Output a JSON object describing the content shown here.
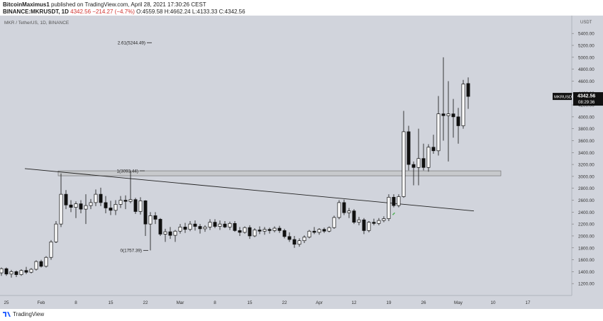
{
  "header": {
    "author": "BitcoinMaximus1",
    "published_text": "published on TradingView.com, April 28, 2021 17:30:26 CEST",
    "pair": "BINANCE:MKRUSDT, 1D",
    "price": "4342.56",
    "change": "−214.27 (−4.7%)",
    "ohlc": "O:4559.58 H:4662.24 L:4133.33 C:4342.56"
  },
  "footer": {
    "brand": "TradingView"
  },
  "chart_data": {
    "type": "candlestick",
    "title": "MKR / TetherUS, 1D, BINANCE",
    "currency": "USDT",
    "ylim": [
      1000,
      5700
    ],
    "yticks": [
      1200,
      1400,
      1600,
      1800,
      2000,
      2200,
      2400,
      2600,
      2800,
      3000,
      3200,
      3400,
      3600,
      3800,
      4000,
      4200,
      4400,
      4600,
      4800,
      5000,
      5200,
      5400
    ],
    "x_tick_labels": [
      "25",
      "Feb",
      "8",
      "15",
      "22",
      "Mar",
      "8",
      "15",
      "22",
      "Apr",
      "12",
      "19",
      "26",
      "May",
      "10",
      "17"
    ],
    "price_label": {
      "symbol": "MKRUSDT",
      "price": "4342.56",
      "countdown": "08:29:36"
    },
    "annotations": [
      {
        "label": "2.61(5244.49)",
        "value": 5244.49
      },
      {
        "label": "1(3093.44)",
        "value": 3093.44
      },
      {
        "label": "0(1757.39)",
        "value": 1757.39
      }
    ],
    "resistance_zone": [
      3010,
      3093.44
    ],
    "trendline": {
      "from": [
        "2021-01-29",
        3130
      ],
      "to": [
        "2021-04-26",
        2420
      ]
    },
    "colors": {
      "up": "#ffffff",
      "down": "#111111",
      "background": "#d1d4dc",
      "zone": "#bfbfbf",
      "marker": "#4caf50"
    },
    "candles": [
      [
        "2021-01-24",
        1380,
        1470,
        1330,
        1450
      ],
      [
        "2021-01-25",
        1450,
        1470,
        1330,
        1360
      ],
      [
        "2021-01-26",
        1360,
        1430,
        1300,
        1400
      ],
      [
        "2021-01-27",
        1400,
        1420,
        1310,
        1350
      ],
      [
        "2021-01-28",
        1350,
        1440,
        1330,
        1420
      ],
      [
        "2021-01-29",
        1420,
        1480,
        1360,
        1390
      ],
      [
        "2021-01-30",
        1390,
        1460,
        1370,
        1440
      ],
      [
        "2021-01-31",
        1440,
        1590,
        1420,
        1570
      ],
      [
        "2021-02-01",
        1570,
        1600,
        1470,
        1490
      ],
      [
        "2021-02-02",
        1490,
        1660,
        1470,
        1640
      ],
      [
        "2021-02-03",
        1640,
        1930,
        1600,
        1900
      ],
      [
        "2021-02-04",
        1900,
        2250,
        1880,
        2200
      ],
      [
        "2021-02-05",
        2200,
        3050,
        2150,
        2700
      ],
      [
        "2021-02-06",
        2700,
        2770,
        2450,
        2520
      ],
      [
        "2021-02-07",
        2520,
        2600,
        2400,
        2480
      ],
      [
        "2021-02-08",
        2480,
        2580,
        2300,
        2540
      ],
      [
        "2021-02-09",
        2540,
        2600,
        2380,
        2450
      ],
      [
        "2021-02-10",
        2450,
        2700,
        2200,
        2510
      ],
      [
        "2021-02-11",
        2510,
        2620,
        2450,
        2560
      ],
      [
        "2021-02-12",
        2560,
        2780,
        2500,
        2700
      ],
      [
        "2021-02-13",
        2700,
        2810,
        2500,
        2560
      ],
      [
        "2021-02-14",
        2560,
        2670,
        2380,
        2470
      ],
      [
        "2021-02-15",
        2470,
        2590,
        2350,
        2430
      ],
      [
        "2021-02-16",
        2430,
        2600,
        2350,
        2530
      ],
      [
        "2021-02-17",
        2530,
        2670,
        2470,
        2600
      ],
      [
        "2021-02-18",
        2600,
        2680,
        2450,
        2580
      ],
      [
        "2021-02-19",
        2580,
        3090,
        2550,
        2610
      ],
      [
        "2021-02-20",
        2610,
        2640,
        2370,
        2410
      ],
      [
        "2021-02-21",
        2410,
        2650,
        2360,
        2590
      ],
      [
        "2021-02-22",
        2590,
        2600,
        2000,
        2200
      ],
      [
        "2021-02-23",
        2200,
        2400,
        1757,
        2340
      ],
      [
        "2021-02-24",
        2340,
        2400,
        2200,
        2280
      ],
      [
        "2021-02-25",
        2280,
        2300,
        2000,
        2030
      ],
      [
        "2021-02-26",
        2030,
        2120,
        1900,
        2070
      ],
      [
        "2021-02-27",
        2070,
        2150,
        1950,
        2010
      ],
      [
        "2021-02-28",
        2010,
        2100,
        1900,
        2080
      ],
      [
        "2021-03-01",
        2080,
        2200,
        2040,
        2150
      ],
      [
        "2021-03-02",
        2150,
        2220,
        2050,
        2110
      ],
      [
        "2021-03-03",
        2110,
        2250,
        2080,
        2200
      ],
      [
        "2021-03-04",
        2200,
        2260,
        2090,
        2160
      ],
      [
        "2021-03-05",
        2160,
        2200,
        2040,
        2120
      ],
      [
        "2021-03-06",
        2120,
        2180,
        2070,
        2150
      ],
      [
        "2021-03-07",
        2150,
        2280,
        2100,
        2230
      ],
      [
        "2021-03-08",
        2230,
        2280,
        2130,
        2160
      ],
      [
        "2021-03-09",
        2160,
        2260,
        2100,
        2200
      ],
      [
        "2021-03-10",
        2200,
        2250,
        2130,
        2150
      ],
      [
        "2021-03-11",
        2150,
        2240,
        2100,
        2210
      ],
      [
        "2021-03-12",
        2210,
        2250,
        2070,
        2090
      ],
      [
        "2021-03-13",
        2090,
        2150,
        2000,
        2060
      ],
      [
        "2021-03-14",
        2060,
        2160,
        2040,
        2140
      ],
      [
        "2021-03-15",
        2140,
        2180,
        1950,
        2000
      ],
      [
        "2021-03-16",
        2000,
        2130,
        1980,
        2100
      ],
      [
        "2021-03-17",
        2100,
        2160,
        2030,
        2080
      ],
      [
        "2021-03-18",
        2080,
        2150,
        2020,
        2110
      ],
      [
        "2021-03-19",
        2110,
        2140,
        2040,
        2090
      ],
      [
        "2021-03-20",
        2090,
        2160,
        2060,
        2130
      ],
      [
        "2021-03-21",
        2130,
        2170,
        2050,
        2090
      ],
      [
        "2021-03-22",
        2090,
        2120,
        1960,
        1990
      ],
      [
        "2021-03-23",
        1990,
        2060,
        1900,
        1940
      ],
      [
        "2021-03-24",
        1940,
        2000,
        1800,
        1860
      ],
      [
        "2021-03-25",
        1860,
        1960,
        1820,
        1920
      ],
      [
        "2021-03-26",
        1920,
        2010,
        1880,
        1980
      ],
      [
        "2021-03-27",
        1980,
        2100,
        1960,
        2080
      ],
      [
        "2021-03-28",
        2080,
        2150,
        2030,
        2060
      ],
      [
        "2021-03-29",
        2060,
        2130,
        2020,
        2110
      ],
      [
        "2021-03-30",
        2110,
        2140,
        2050,
        2080
      ],
      [
        "2021-03-31",
        2080,
        2160,
        2060,
        2140
      ],
      [
        "2021-04-01",
        2140,
        2340,
        2120,
        2310
      ],
      [
        "2021-04-02",
        2310,
        2600,
        2280,
        2560
      ],
      [
        "2021-04-03",
        2560,
        2610,
        2350,
        2390
      ],
      [
        "2021-04-04",
        2390,
        2470,
        2300,
        2420
      ],
      [
        "2021-04-05",
        2420,
        2450,
        2200,
        2230
      ],
      [
        "2021-04-06",
        2230,
        2320,
        2180,
        2270
      ],
      [
        "2021-04-07",
        2270,
        2300,
        2030,
        2090
      ],
      [
        "2021-04-08",
        2090,
        2250,
        2060,
        2230
      ],
      [
        "2021-04-09",
        2230,
        2290,
        2180,
        2210
      ],
      [
        "2021-04-10",
        2210,
        2300,
        2180,
        2260
      ],
      [
        "2021-04-11",
        2260,
        2330,
        2230,
        2290
      ],
      [
        "2021-04-12",
        2290,
        2700,
        2250,
        2650
      ],
      [
        "2021-04-13",
        2650,
        2700,
        2480,
        2510
      ],
      [
        "2021-04-14",
        2510,
        2700,
        2480,
        2660
      ],
      [
        "2021-04-15",
        2660,
        4100,
        2640,
        3750
      ],
      [
        "2021-04-16",
        3750,
        3850,
        3100,
        3200
      ],
      [
        "2021-04-17",
        3200,
        3250,
        2850,
        3150
      ],
      [
        "2021-04-18",
        3150,
        3800,
        2850,
        3300
      ],
      [
        "2021-04-19",
        3300,
        3550,
        3100,
        3150
      ],
      [
        "2021-04-20",
        3150,
        3540,
        3080,
        3490
      ],
      [
        "2021-04-21",
        3490,
        3700,
        3380,
        3430
      ],
      [
        "2021-04-22",
        3430,
        4350,
        3350,
        4050
      ],
      [
        "2021-04-23",
        4050,
        5000,
        3600,
        4020
      ],
      [
        "2021-04-24",
        4020,
        4600,
        3250,
        4050
      ],
      [
        "2021-04-25",
        4050,
        4300,
        3650,
        4000
      ],
      [
        "2021-04-26",
        4000,
        4150,
        3550,
        3850
      ],
      [
        "2021-04-27",
        3850,
        4620,
        3800,
        4550
      ],
      [
        "2021-04-28",
        4559.58,
        4662.24,
        4133.33,
        4342.56
      ]
    ]
  }
}
